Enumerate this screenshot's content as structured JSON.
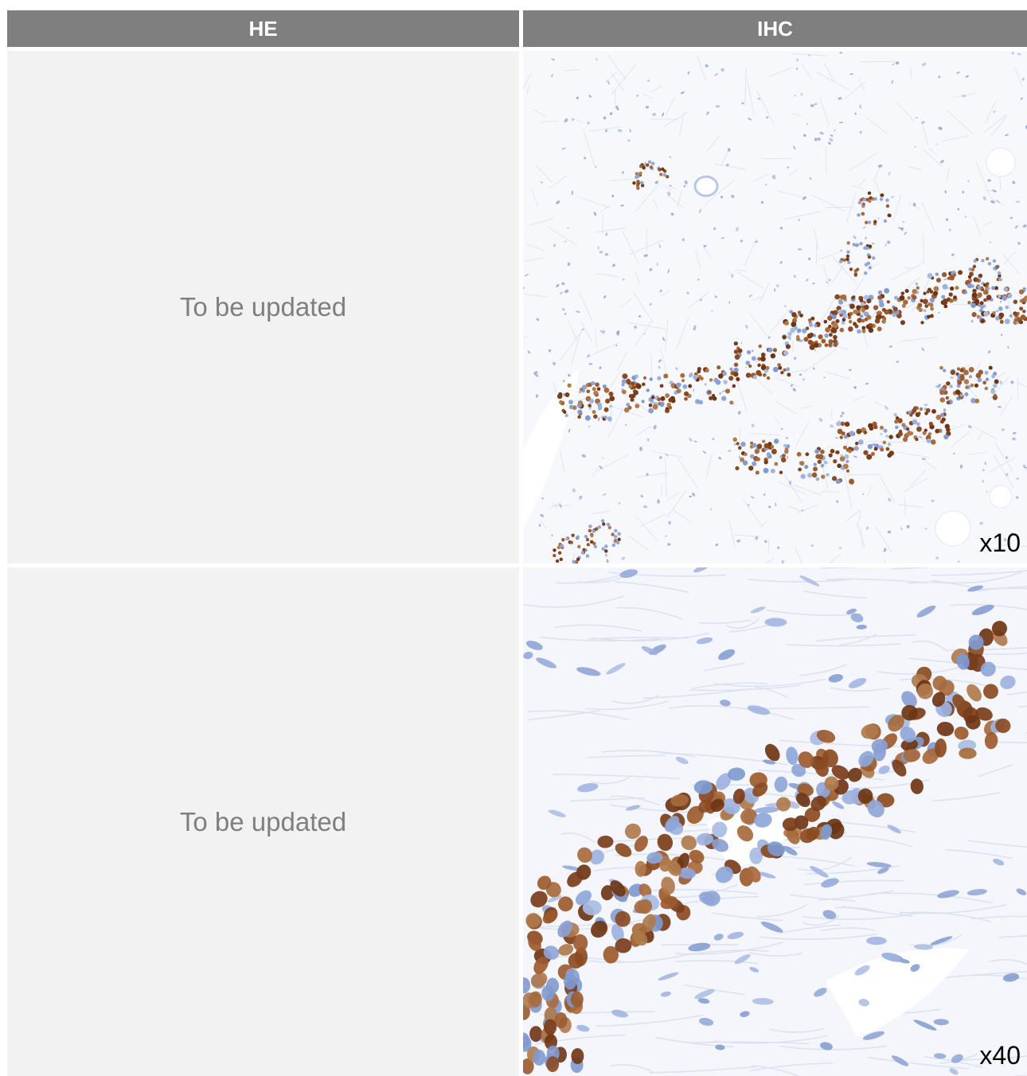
{
  "columns": {
    "he": "HE",
    "ihc": "IHC"
  },
  "rows": [
    {
      "he_text": "To be updated",
      "magnification": "x10"
    },
    {
      "he_text": "To be updated",
      "magnification": "x40"
    }
  ],
  "colors": {
    "header_bg": "#7f7f7f",
    "header_text": "#ffffff",
    "placeholder_bg": "#f2f2f2",
    "placeholder_text": "#7f7f7f",
    "stain_positive": "#8b4a22",
    "stain_negative": "#7f9ad0"
  }
}
